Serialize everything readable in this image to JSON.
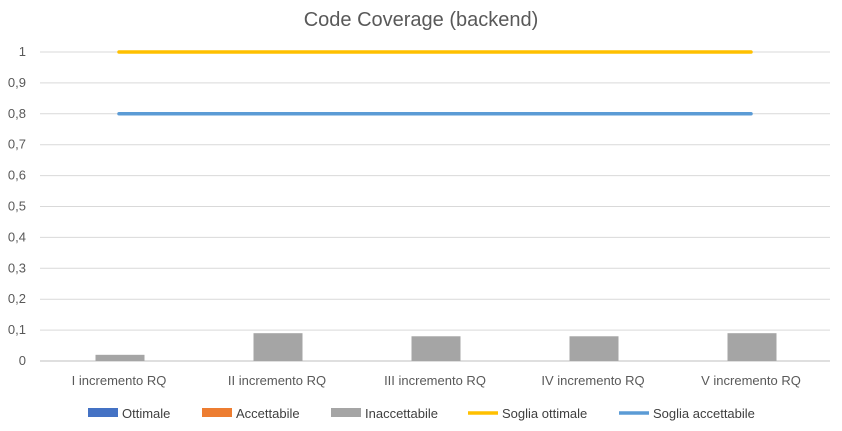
{
  "chart_data": {
    "type": "bar",
    "title": "Code Coverage (backend)",
    "categories": [
      "I incremento RQ",
      "II incremento RQ",
      "III incremento RQ",
      "IV incremento RQ",
      "V incremento RQ"
    ],
    "ylim": [
      0,
      1
    ],
    "yticks": [
      "0",
      "0,1",
      "0,2",
      "0,3",
      "0,4",
      "0,5",
      "0,6",
      "0,7",
      "0,8",
      "0,9",
      "1"
    ],
    "grid": true,
    "legend_position": "bottom",
    "series": [
      {
        "name": "Ottimale",
        "kind": "bar",
        "color": "#4472C4",
        "values": [
          0,
          0,
          0,
          0,
          0
        ]
      },
      {
        "name": "Accettabile",
        "kind": "bar",
        "color": "#ED7D31",
        "values": [
          0,
          0,
          0,
          0,
          0
        ]
      },
      {
        "name": "Inaccettabile",
        "kind": "bar",
        "color": "#A5A5A5",
        "values": [
          0.02,
          0.09,
          0.08,
          0.08,
          0.09
        ]
      },
      {
        "name": "Soglia ottimale",
        "kind": "line",
        "color": "#FFC000",
        "values": [
          1,
          1,
          1,
          1,
          1
        ]
      },
      {
        "name": "Soglia accettabile",
        "kind": "line",
        "color": "#5B9BD5",
        "values": [
          0.8,
          0.8,
          0.8,
          0.8,
          0.8
        ]
      }
    ]
  }
}
